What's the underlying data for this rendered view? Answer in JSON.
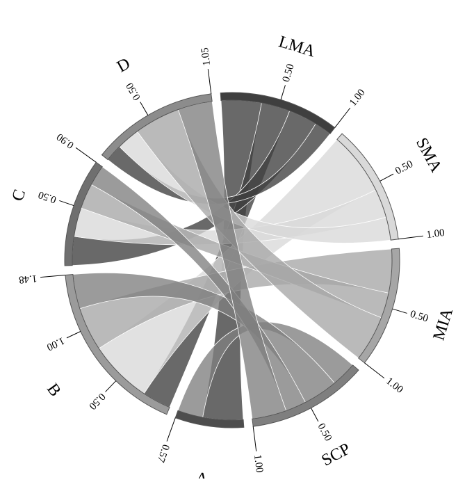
{
  "diagram": {
    "type": "chord",
    "colors": {
      "LMA": "#3f3f3f",
      "SMA": "#d9d9d9",
      "MIA": "#a6a6a6",
      "SCP": "#7f7f7f",
      "A": "#4d4d4d",
      "B": "#9b9b9b",
      "C": "#6f6f6f",
      "D": "#8c8c8c"
    },
    "sectors": [
      {
        "id": "LMA",
        "label": "LMA",
        "total": 1.0,
        "ticks": [
          {
            "value": 0.5,
            "text": "0.50"
          },
          {
            "value": 1.0,
            "text": "1.00"
          }
        ]
      },
      {
        "id": "SMA",
        "label": "SMA",
        "total": 1.0,
        "ticks": [
          {
            "value": 0.5,
            "text": "0.50"
          },
          {
            "value": 1.0,
            "text": "1.00"
          }
        ]
      },
      {
        "id": "MIA",
        "label": "MIA",
        "total": 1.0,
        "ticks": [
          {
            "value": 0.5,
            "text": "0.50"
          },
          {
            "value": 1.0,
            "text": "1.00"
          }
        ]
      },
      {
        "id": "SCP",
        "label": "SCP",
        "total": 1.0,
        "ticks": [
          {
            "value": 0.5,
            "text": "0.50"
          },
          {
            "value": 1.0,
            "text": "1.00"
          }
        ]
      },
      {
        "id": "A",
        "label": "A",
        "total": 0.57,
        "ticks": [
          {
            "value": 0.57,
            "text": "0.57"
          }
        ]
      },
      {
        "id": "B",
        "label": "B",
        "total": 1.48,
        "ticks": [
          {
            "value": 0.5,
            "text": "0.50"
          },
          {
            "value": 1.0,
            "text": "1.00"
          },
          {
            "value": 1.48,
            "text": "1.48"
          }
        ]
      },
      {
        "id": "C",
        "label": "C",
        "total": 0.9,
        "ticks": [
          {
            "value": 0.5,
            "text": "0.50"
          },
          {
            "value": 0.9,
            "text": "0.90"
          }
        ]
      },
      {
        "id": "D",
        "label": "D",
        "total": 1.05,
        "ticks": [
          {
            "value": 0.5,
            "text": "0.50"
          },
          {
            "value": 1.05,
            "text": "1.05"
          }
        ]
      }
    ],
    "flows": [
      {
        "from": "LMA",
        "to": "A",
        "value": 0.35
      },
      {
        "from": "LMA",
        "to": "B",
        "value": 0.25
      },
      {
        "from": "LMA",
        "to": "C",
        "value": 0.25
      },
      {
        "from": "LMA",
        "to": "D",
        "value": 0.15
      },
      {
        "from": "SMA",
        "to": "B",
        "value": 0.55
      },
      {
        "from": "SMA",
        "to": "C",
        "value": 0.25
      },
      {
        "from": "SMA",
        "to": "D",
        "value": 0.2
      },
      {
        "from": "MIA",
        "to": "B",
        "value": 0.38
      },
      {
        "from": "MIA",
        "to": "C",
        "value": 0.22
      },
      {
        "from": "MIA",
        "to": "D",
        "value": 0.4
      },
      {
        "from": "SCP",
        "to": "A",
        "value": 0.22
      },
      {
        "from": "SCP",
        "to": "B",
        "value": 0.3
      },
      {
        "from": "SCP",
        "to": "C",
        "value": 0.18
      },
      {
        "from": "SCP",
        "to": "D",
        "value": 0.3
      }
    ]
  }
}
